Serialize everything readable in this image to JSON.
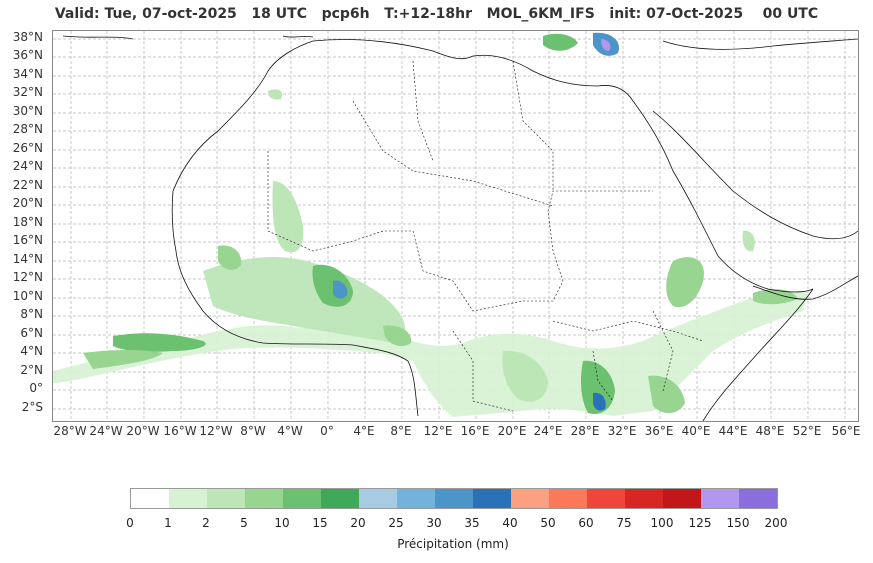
{
  "title": "Valid: Tue, 07-oct-2025   18 UTC   pcp6h   T:+12-18hr   MOL_6KM_IFS   init: 07-Oct-2025    00 UTC",
  "lat_labels": [
    "38°N",
    "36°N",
    "34°N",
    "32°N",
    "30°N",
    "28°N",
    "26°N",
    "24°N",
    "22°N",
    "20°N",
    "18°N",
    "16°N",
    "14°N",
    "12°N",
    "10°N",
    "8°N",
    "6°N",
    "4°N",
    "2°N",
    "0°",
    "2°S"
  ],
  "lon_labels": [
    "28°W",
    "24°W",
    "20°W",
    "16°W",
    "12°W",
    "8°W",
    "4°W",
    "0°",
    "4°E",
    "8°E",
    "12°E",
    "16°E",
    "20°E",
    "24°E",
    "28°E",
    "32°E",
    "36°E",
    "40°E",
    "44°E",
    "48°E",
    "52°E",
    "56°E"
  ],
  "colorbar": {
    "ticks": [
      "0",
      "1",
      "2",
      "5",
      "10",
      "15",
      "20",
      "25",
      "30",
      "35",
      "40",
      "50",
      "60",
      "75",
      "100",
      "125",
      "150",
      "200"
    ],
    "colors": [
      "#ffffff",
      "#d6f2d3",
      "#bde6b7",
      "#97d590",
      "#6cc170",
      "#3fa95a",
      "#a6cbe2",
      "#73b2d9",
      "#4b95c8",
      "#2a72b7",
      "#fca084",
      "#fb7858",
      "#ef4639",
      "#d72624",
      "#c2161b",
      "#b197ee",
      "#8a6edc",
      "#4b0082"
    ],
    "label": "Précipitation (mm)"
  }
}
